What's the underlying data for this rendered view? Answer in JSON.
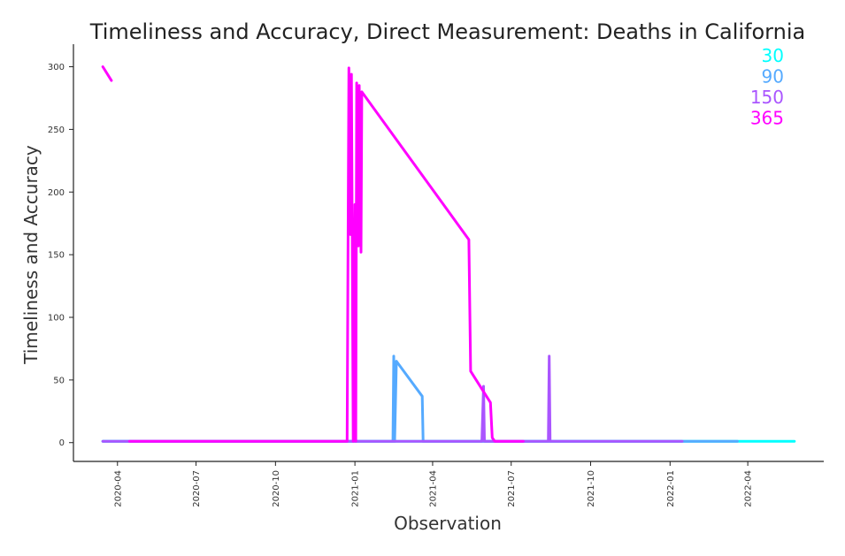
{
  "chart_data": {
    "type": "line",
    "title": "Timeliness and Accuracy, Direct Measurement: Deaths in California",
    "xlabel": "Observation",
    "ylabel": "Timeliness and Accuracy",
    "x_range": [
      "2020-02-10",
      "2022-06-28"
    ],
    "ylim": [
      -15,
      318
    ],
    "yticks": [
      0,
      50,
      100,
      150,
      200,
      250,
      300
    ],
    "xticks": [
      "2020-04",
      "2020-07",
      "2020-10",
      "2021-01",
      "2021-04",
      "2021-07",
      "2021-10",
      "2022-01",
      "2022-04"
    ],
    "grid": false,
    "legend_position": "top-right",
    "series": [
      {
        "name": "30",
        "color": "#00ffff",
        "points": [
          [
            "2020-03-15",
            1
          ],
          [
            "2020-03-25",
            1
          ],
          [
            "2020-04-15",
            1
          ],
          [
            "2022-05-25",
            1
          ]
        ]
      },
      {
        "name": "90",
        "color": "#55aaff",
        "points": [
          [
            "2020-03-15",
            1
          ],
          [
            "2020-03-25",
            1
          ],
          [
            "2020-04-15",
            1
          ],
          [
            "2021-02-14",
            1
          ],
          [
            "2021-02-15",
            69
          ],
          [
            "2021-02-16",
            1
          ],
          [
            "2021-02-18",
            65
          ],
          [
            "2021-03-20",
            37
          ],
          [
            "2021-03-21",
            1
          ],
          [
            "2022-03-20",
            1
          ]
        ]
      },
      {
        "name": "150",
        "color": "#aa55ff",
        "points": [
          [
            "2020-03-15",
            1
          ],
          [
            "2020-03-25",
            1
          ],
          [
            "2020-04-15",
            1
          ],
          [
            "2021-05-28",
            1
          ],
          [
            "2021-05-30",
            45
          ],
          [
            "2021-05-31",
            1
          ],
          [
            "2021-08-13",
            1
          ],
          [
            "2021-08-14",
            69
          ],
          [
            "2021-08-15",
            1
          ],
          [
            "2022-01-15",
            1
          ]
        ]
      },
      {
        "name": "365",
        "color": "#ff00ff",
        "points": [
          [
            "2020-03-15",
            300
          ],
          [
            "2020-03-25",
            289
          ],
          null,
          [
            "2020-04-15",
            1
          ],
          [
            "2020-12-23",
            1
          ],
          [
            "2020-12-25",
            299
          ],
          [
            "2020-12-27",
            166
          ],
          [
            "2020-12-28",
            294
          ],
          [
            "2020-12-30",
            1
          ],
          [
            "2021-01-01",
            190
          ],
          [
            "2021-01-02",
            1
          ],
          [
            "2021-01-03",
            287
          ],
          [
            "2021-01-05",
            157
          ],
          [
            "2021-01-06",
            285
          ],
          [
            "2021-01-08",
            152
          ],
          [
            "2021-01-09",
            280
          ],
          [
            "2021-05-13",
            162
          ],
          [
            "2021-05-15",
            57
          ],
          [
            "2021-06-07",
            32
          ],
          [
            "2021-06-09",
            4
          ],
          [
            "2021-06-12",
            1
          ],
          [
            "2021-07-15",
            1
          ]
        ]
      }
    ]
  }
}
